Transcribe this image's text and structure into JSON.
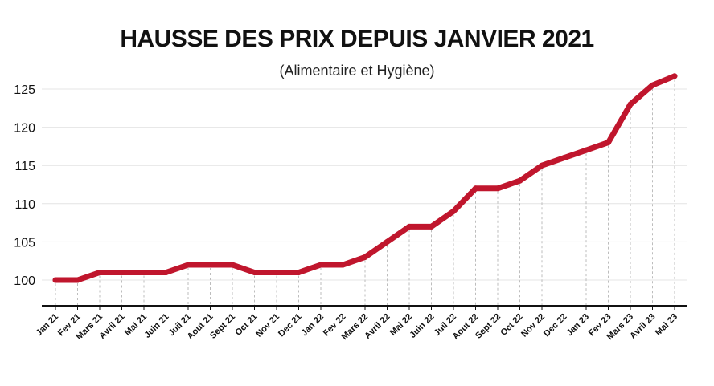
{
  "title": "HAUSSE DES PRIX DEPUIS JANVIER 2021",
  "subtitle": "(Alimentaire et Hygiène)",
  "colors": {
    "line": "#c0162d",
    "axis": "#111111",
    "grid": "#e4e4e4",
    "guide": "#bdbdbd"
  },
  "chart_data": {
    "type": "line",
    "title": "HAUSSE DES PRIX DEPUIS JANVIER 2021",
    "subtitle": "(Alimentaire et Hygiène)",
    "categories": [
      "Jan 21",
      "Fev 21",
      "Mars 21",
      "Avril 21",
      "Mai 21",
      "Juin 21",
      "Juil 21",
      "Aout 21",
      "Sept 21",
      "Oct 21",
      "Nov 21",
      "Dec 21",
      "Jan 22",
      "Fev 22",
      "Mars 22",
      "Avril 22",
      "Mai 22",
      "Juin 22",
      "Juil 22",
      "Aout 22",
      "Sept 22",
      "Oct 22",
      "Nov 22",
      "Dec 22",
      "Jan 23",
      "Fev 23",
      "Mars 23",
      "Avril 23",
      "Mai 23"
    ],
    "values": [
      100,
      100,
      101,
      101,
      101,
      101,
      102,
      102,
      102,
      101,
      101,
      101,
      102,
      102,
      103,
      105,
      107,
      107,
      109,
      112,
      112,
      113,
      115,
      116,
      117,
      118,
      123,
      125.5,
      126.7
    ],
    "yticks": [
      100,
      105,
      110,
      115,
      120,
      125
    ],
    "ylim": [
      96.5,
      126.7
    ],
    "grid": true,
    "legend": "none"
  }
}
